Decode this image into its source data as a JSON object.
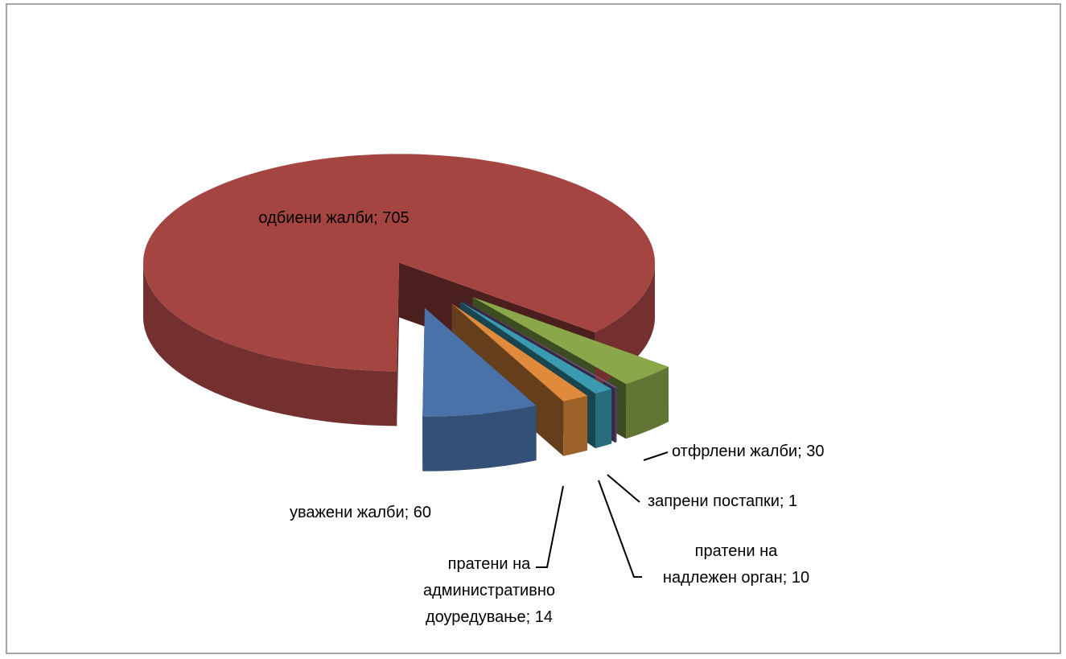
{
  "chart_data": {
    "type": "pie3d",
    "values": [
      705,
      60,
      14,
      10,
      1,
      30
    ],
    "value_labels": [
      "одбиени жалби; 705",
      "уважени жалби; 60",
      "пратени на\nадминистративно\nдоуредување; 14",
      "пратени на\nнадлежен орган; 10",
      "запрени постапки; 1",
      "отфрлени жалби; 30"
    ],
    "colors": [
      "#a54542",
      "#4a72a8",
      "#e08a3c",
      "#3a9ab0",
      "#7a5a96",
      "#8aa84a"
    ]
  }
}
